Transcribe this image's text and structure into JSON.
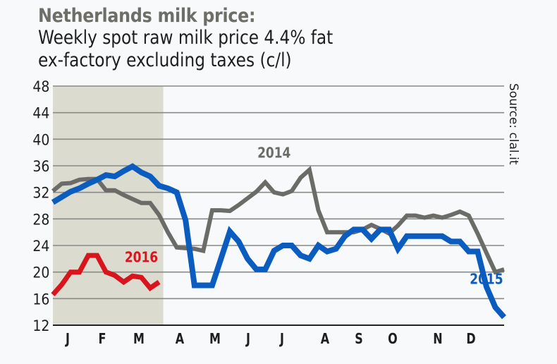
{
  "chart_data": {
    "type": "line",
    "title": "Netherlands milk price:",
    "subtitle_lines": [
      "Weekly spot raw milk price 4.4% fat",
      "ex-factory excluding taxes (c/l)"
    ],
    "source": "Source: clal.it",
    "xlabel": "",
    "ylabel": "",
    "ylim": [
      12,
      48
    ],
    "yticks": [
      "12",
      "16",
      "20",
      "24",
      "28",
      "32",
      "36",
      "40",
      "44",
      "48"
    ],
    "xlim": [
      1,
      52
    ],
    "month_labels": [
      "J",
      "F",
      "M",
      "A",
      "M",
      "J",
      "J",
      "A",
      "S",
      "O",
      "N",
      "D"
    ],
    "grid": true,
    "shaded_period": {
      "from_week": 1,
      "to_week": 13,
      "color": "#dcdbcf"
    },
    "series": [
      {
        "name": "2014",
        "color": "#6b6b67",
        "label_week": 26,
        "label_value": 37.2,
        "points": [
          [
            1,
            32.2
          ],
          [
            2,
            33.3
          ],
          [
            3,
            33.4
          ],
          [
            4,
            33.9
          ],
          [
            5,
            34.0
          ],
          [
            6,
            34.0
          ],
          [
            7,
            32.3
          ],
          [
            8,
            32.3
          ],
          [
            9,
            31.6
          ],
          [
            10,
            31.0
          ],
          [
            11,
            30.4
          ],
          [
            12,
            30.4
          ],
          [
            13,
            28.6
          ],
          [
            14,
            26.0
          ],
          [
            15,
            23.7
          ],
          [
            16,
            23.6
          ],
          [
            17,
            23.5
          ],
          [
            18,
            23.2
          ],
          [
            19,
            29.3
          ],
          [
            20,
            29.3
          ],
          [
            21,
            29.2
          ],
          [
            22,
            30.1
          ],
          [
            23,
            31.1
          ],
          [
            24,
            32.1
          ],
          [
            25,
            33.5
          ],
          [
            26,
            32.0
          ],
          [
            27,
            31.7
          ],
          [
            28,
            32.2
          ],
          [
            29,
            34.2
          ],
          [
            30,
            35.4
          ],
          [
            31,
            29.3
          ],
          [
            32,
            26.0
          ],
          [
            33,
            26.0
          ],
          [
            34,
            26.0
          ],
          [
            35,
            26.0
          ],
          [
            36,
            26.4
          ],
          [
            37,
            27.1
          ],
          [
            38,
            26.5
          ],
          [
            39,
            25.8
          ],
          [
            40,
            27.0
          ],
          [
            41,
            28.5
          ],
          [
            42,
            28.5
          ],
          [
            43,
            28.2
          ],
          [
            44,
            28.5
          ],
          [
            45,
            28.2
          ],
          [
            46,
            28.6
          ],
          [
            47,
            29.1
          ],
          [
            48,
            28.5
          ],
          [
            49,
            25.8
          ],
          [
            50,
            22.9
          ],
          [
            51,
            20.0
          ],
          [
            52,
            20.4
          ]
        ]
      },
      {
        "name": "2015",
        "color": "#0a5cbf",
        "label_week": 50,
        "label_value": 18.2,
        "points": [
          [
            1,
            30.5
          ],
          [
            2,
            31.3
          ],
          [
            3,
            32.1
          ],
          [
            4,
            32.6
          ],
          [
            5,
            33.3
          ],
          [
            6,
            33.9
          ],
          [
            7,
            34.6
          ],
          [
            8,
            34.4
          ],
          [
            9,
            35.2
          ],
          [
            10,
            35.9
          ],
          [
            11,
            35.0
          ],
          [
            12,
            34.4
          ],
          [
            13,
            33.0
          ],
          [
            14,
            32.6
          ],
          [
            15,
            32.0
          ],
          [
            16,
            27.8
          ],
          [
            17,
            18.0
          ],
          [
            18,
            18.0
          ],
          [
            19,
            18.0
          ],
          [
            20,
            22.0
          ],
          [
            21,
            26.1
          ],
          [
            22,
            24.6
          ],
          [
            23,
            22.0
          ],
          [
            24,
            20.4
          ],
          [
            25,
            20.4
          ],
          [
            26,
            23.2
          ],
          [
            27,
            24.0
          ],
          [
            28,
            24.0
          ],
          [
            29,
            22.5
          ],
          [
            30,
            22.0
          ],
          [
            31,
            24.0
          ],
          [
            32,
            23.1
          ],
          [
            33,
            23.5
          ],
          [
            34,
            25.4
          ],
          [
            35,
            26.4
          ],
          [
            36,
            26.4
          ],
          [
            37,
            25.0
          ],
          [
            38,
            26.4
          ],
          [
            39,
            26.4
          ],
          [
            40,
            23.5
          ],
          [
            41,
            25.4
          ],
          [
            42,
            25.4
          ],
          [
            43,
            25.4
          ],
          [
            44,
            25.4
          ],
          [
            45,
            25.4
          ],
          [
            46,
            24.6
          ],
          [
            47,
            24.6
          ],
          [
            48,
            23.1
          ],
          [
            49,
            23.1
          ],
          [
            50,
            17.8
          ],
          [
            51,
            14.7
          ],
          [
            52,
            13.2
          ]
        ]
      },
      {
        "name": "2016",
        "color": "#d8141d",
        "label_week": 11,
        "label_value": 21.5,
        "points": [
          [
            1,
            16.6
          ],
          [
            2,
            18.1
          ],
          [
            3,
            20.0
          ],
          [
            4,
            20.0
          ],
          [
            5,
            22.5
          ],
          [
            6,
            22.5
          ],
          [
            7,
            20.0
          ],
          [
            8,
            19.5
          ],
          [
            9,
            18.5
          ],
          [
            10,
            19.4
          ],
          [
            11,
            19.2
          ],
          [
            12,
            17.6
          ],
          [
            13,
            18.5
          ]
        ]
      }
    ]
  }
}
